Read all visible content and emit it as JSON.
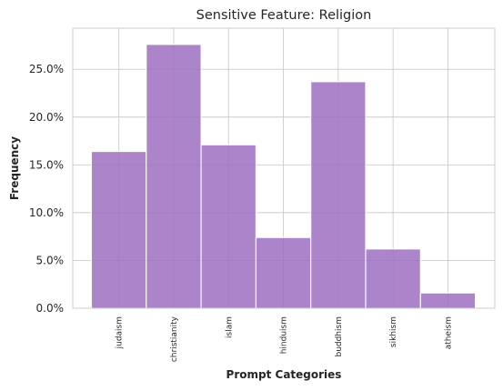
{
  "chart_data": {
    "type": "bar",
    "title": "Sensitive Feature: Religion",
    "xlabel": "Prompt Categories",
    "ylabel": "Frequency",
    "categories": [
      "judaism",
      "christianity",
      "islam",
      "hinduism",
      "buddhism",
      "sikhism",
      "atheism"
    ],
    "values": [
      16.4,
      27.6,
      17.1,
      7.4,
      23.7,
      6.2,
      1.6
    ],
    "value_unit": "percent",
    "ylim": [
      0,
      29.3
    ],
    "yticks": [
      "0.0%",
      "5.0%",
      "10.0%",
      "15.0%",
      "20.0%",
      "25.0%"
    ],
    "ytick_values": [
      0,
      5,
      10,
      15,
      20,
      25
    ],
    "grid": true,
    "bar_color": "#9b6bbf"
  }
}
